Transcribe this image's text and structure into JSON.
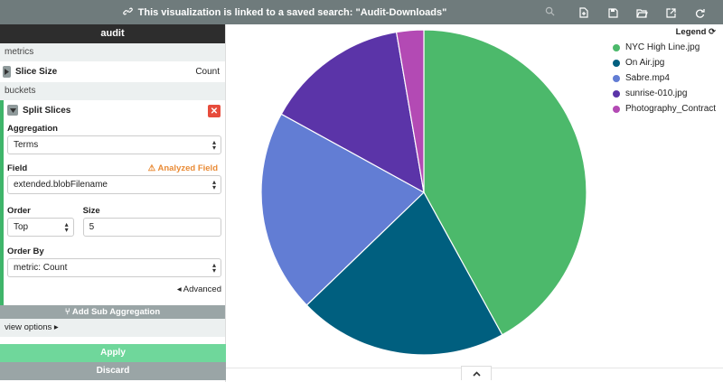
{
  "topbar": {
    "linked_text": "This visualization is linked to a saved search: \"Audit-Downloads\"",
    "tools": [
      "new-visualization-icon",
      "save-icon",
      "open-icon",
      "share-icon",
      "refresh-icon"
    ]
  },
  "sidebar": {
    "title": "audit",
    "metrics_label": "metrics",
    "metric": {
      "label": "Slice Size",
      "value": "Count"
    },
    "buckets_label": "buckets",
    "bucket": {
      "label": "Split Slices",
      "aggregation_label": "Aggregation",
      "aggregation_value": "Terms",
      "field_label": "Field",
      "analyzed_label": "Analyzed Field",
      "field_value": "extended.blobFilename",
      "order_label": "Order",
      "order_value": "Top",
      "size_label": "Size",
      "size_value": "5",
      "order_by_label": "Order By",
      "order_by_value": "metric: Count",
      "advanced_label": "Advanced"
    },
    "sub_agg_label": "Add Sub Aggregation",
    "view_options_label": "view options",
    "apply_label": "Apply",
    "discard_label": "Discard"
  },
  "legend": {
    "title": "Legend",
    "items": [
      {
        "label": "NYC High Line.jpg",
        "color": "#4cb96b"
      },
      {
        "label": "On Air.jpg",
        "color": "#005f7f"
      },
      {
        "label": "Sabre.mp4",
        "color": "#627dd4"
      },
      {
        "label": "sunrise-010.jpg",
        "color": "#5b34a8"
      },
      {
        "label": "Photography_Contract...",
        "color": "#b34ab4"
      }
    ]
  },
  "chart_data": {
    "type": "pie",
    "title": "",
    "slices": [
      {
        "label": "NYC High Line.jpg",
        "value": 42.0,
        "color": "#4cb96b"
      },
      {
        "label": "On Air.jpg",
        "value": 20.8,
        "color": "#005f7f"
      },
      {
        "label": "Sabre.mp4",
        "value": 20.2,
        "color": "#627dd4"
      },
      {
        "label": "sunrise-010.jpg",
        "value": 14.3,
        "color": "#5b34a8"
      },
      {
        "label": "Photography_Contract...",
        "value": 2.7,
        "color": "#b34ab4"
      }
    ]
  }
}
